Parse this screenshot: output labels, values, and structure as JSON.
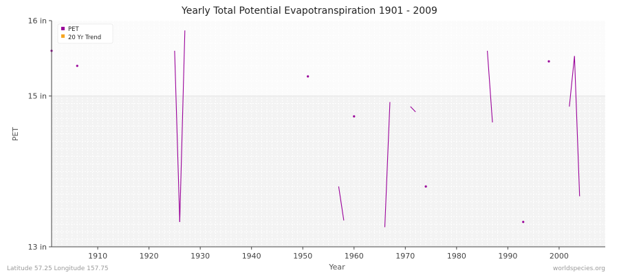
{
  "chart_data": {
    "type": "line",
    "title": "Yearly Total Potential Evapotranspiration 1901 - 2009",
    "xlabel": "Year",
    "ylabel": "PET",
    "xlim": [
      1901,
      2009
    ],
    "ylim": [
      13,
      16
    ],
    "y_ticks": [
      {
        "value": 16,
        "label": "16 in"
      },
      {
        "value": 15,
        "label": "15 in"
      },
      {
        "value": 13,
        "label": "13 in"
      }
    ],
    "x_ticks": [
      1910,
      1920,
      1930,
      1940,
      1950,
      1960,
      1970,
      1980,
      1990,
      2000
    ],
    "grid": true,
    "legend_position": "top-left",
    "series": [
      {
        "name": "PET",
        "color": "#990099",
        "x": [
          1901,
          1902,
          1903,
          1904,
          1905,
          1906,
          1907,
          1908,
          1909,
          1910,
          1911,
          1912,
          1913,
          1914,
          1915,
          1916,
          1917,
          1918,
          1919,
          1920,
          1921,
          1922,
          1923,
          1924,
          1925,
          1926,
          1927,
          1928,
          1929,
          1930,
          1931,
          1932,
          1933,
          1934,
          1935,
          1936,
          1937,
          1938,
          1939,
          1940,
          1941,
          1942,
          1943,
          1944,
          1945,
          1946,
          1947,
          1948,
          1949,
          1950,
          1951,
          1952,
          1953,
          1954,
          1955,
          1956,
          1957,
          1958,
          1959,
          1960,
          1961,
          1962,
          1963,
          1964,
          1965,
          1966,
          1967,
          1968,
          1969,
          1970,
          1971,
          1972,
          1973,
          1974,
          1975,
          1976,
          1977,
          1978,
          1979,
          1980,
          1981,
          1982,
          1983,
          1984,
          1985,
          1986,
          1987,
          1988,
          1989,
          1990,
          1991,
          1992,
          1993,
          1994,
          1995,
          1996,
          1997,
          1998,
          1999,
          2000,
          2001,
          2002,
          2003,
          2004,
          2005,
          2006,
          2007,
          2008,
          2009
        ],
        "values": [
          15.6,
          null,
          null,
          null,
          null,
          15.4,
          null,
          null,
          null,
          null,
          null,
          null,
          null,
          null,
          null,
          null,
          null,
          null,
          null,
          null,
          null,
          null,
          null,
          null,
          15.6,
          13.33,
          15.87,
          null,
          null,
          null,
          null,
          null,
          null,
          null,
          null,
          null,
          null,
          null,
          null,
          null,
          null,
          null,
          null,
          null,
          null,
          null,
          null,
          null,
          null,
          null,
          15.26,
          null,
          null,
          null,
          null,
          null,
          13.8,
          13.35,
          null,
          14.73,
          null,
          null,
          null,
          null,
          null,
          13.26,
          14.92,
          null,
          null,
          null,
          14.86,
          14.79,
          null,
          13.8,
          null,
          null,
          null,
          null,
          null,
          null,
          null,
          null,
          null,
          null,
          null,
          15.6,
          14.65,
          null,
          null,
          null,
          null,
          null,
          13.33,
          null,
          null,
          null,
          null,
          15.46,
          null,
          null,
          null,
          14.86,
          15.53,
          13.67,
          null,
          null,
          null,
          null,
          null
        ]
      },
      {
        "name": "20 Yr Trend",
        "color": "#f5a623",
        "x": [],
        "values": []
      }
    ]
  },
  "footer": {
    "location": "Latitude 57.25 Longitude 157.75",
    "source": "worldspecies.org"
  }
}
